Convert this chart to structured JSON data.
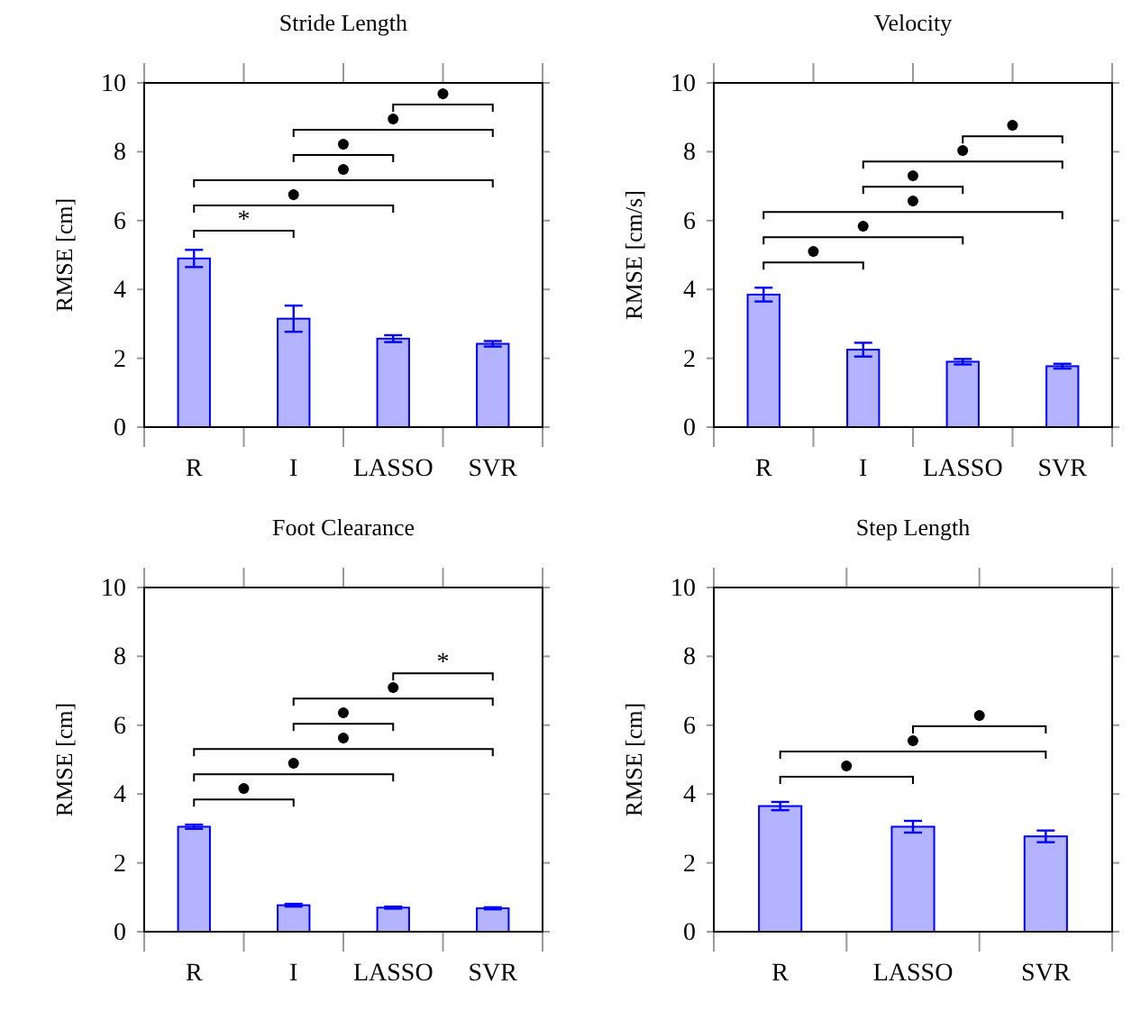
{
  "chart_data": [
    {
      "type": "bar",
      "title": "Stride Length",
      "ylabel": "RMSE [cm]",
      "categories": [
        "R",
        "I",
        "LASSO",
        "SVR"
      ],
      "values": [
        4.9,
        3.15,
        2.57,
        2.42
      ],
      "errors": [
        0.25,
        0.38,
        0.1,
        0.08
      ],
      "color": "#b3b3ff",
      "ylim": [
        0,
        10
      ],
      "yticks": [
        0,
        2,
        4,
        6,
        8,
        10
      ],
      "grid": false,
      "annotations": [
        "*",
        "●",
        "●",
        "●",
        "●",
        "●"
      ]
    },
    {
      "type": "bar",
      "title": "Velocity",
      "ylabel": "RMSE [cm/s]",
      "categories": [
        "R",
        "I",
        "LASSO",
        "SVR"
      ],
      "values": [
        3.85,
        2.25,
        1.9,
        1.77
      ],
      "errors": [
        0.2,
        0.2,
        0.08,
        0.07
      ],
      "color": "#b3b3ff",
      "ylim": [
        0,
        10
      ],
      "yticks": [
        0,
        2,
        4,
        6,
        8,
        10
      ],
      "grid": false,
      "annotations": [
        "●",
        "●",
        "●",
        "●",
        "●",
        "●"
      ]
    },
    {
      "type": "bar",
      "title": "Foot Clearance",
      "ylabel": "RMSE [cm]",
      "categories": [
        "R",
        "I",
        "LASSO",
        "SVR"
      ],
      "values": [
        3.05,
        0.77,
        0.7,
        0.68
      ],
      "errors": [
        0.06,
        0.04,
        0.03,
        0.03
      ],
      "color": "#b3b3ff",
      "ylim": [
        0,
        10
      ],
      "yticks": [
        0,
        2,
        4,
        6,
        8,
        10
      ],
      "grid": false,
      "annotations": [
        "●",
        "●",
        "●",
        "●",
        "●",
        "*"
      ]
    },
    {
      "type": "bar",
      "title": "Step Length",
      "ylabel": "RMSE [cm]",
      "categories": [
        "R",
        "LASSO",
        "SVR"
      ],
      "values": [
        3.65,
        3.05,
        2.77
      ],
      "errors": [
        0.12,
        0.17,
        0.17
      ],
      "color": "#b3b3ff",
      "ylim": [
        0,
        10
      ],
      "yticks": [
        0,
        2,
        4,
        6,
        8,
        10
      ],
      "grid": false,
      "annotations": [
        "●",
        "●",
        "●"
      ]
    }
  ]
}
